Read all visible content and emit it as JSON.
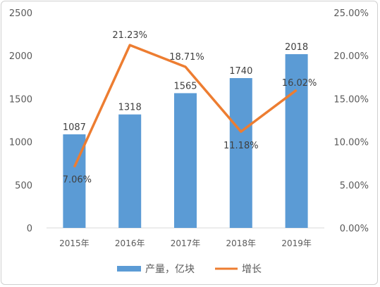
{
  "chart_data": {
    "type": "bar+line",
    "categories": [
      "2015年",
      "2016年",
      "2017年",
      "2018年",
      "2019年"
    ],
    "series": [
      {
        "name": "产量，亿块",
        "type": "bar",
        "axis": "left",
        "values": [
          1087,
          1318,
          1565,
          1740,
          2018
        ],
        "labels": [
          "1087",
          "1318",
          "1565",
          "1740",
          "2018"
        ],
        "color": "#5b9bd5"
      },
      {
        "name": "增长",
        "type": "line",
        "axis": "right",
        "values": [
          7.06,
          21.23,
          18.71,
          11.18,
          16.02
        ],
        "labels": [
          "7.06%",
          "21.23%",
          "18.71%",
          "11.18%",
          "16.02%"
        ],
        "color": "#ed7d31"
      }
    ],
    "y_left": {
      "min": 0,
      "max": 2500,
      "ticks": [
        "0",
        "500",
        "1000",
        "1500",
        "2000",
        "2500"
      ]
    },
    "y_right": {
      "min": 0,
      "max": 25,
      "ticks": [
        "0.00%",
        "5.00%",
        "10.00%",
        "15.00%",
        "20.00%",
        "25.00%"
      ]
    },
    "grid": false,
    "legend_position": "bottom"
  }
}
